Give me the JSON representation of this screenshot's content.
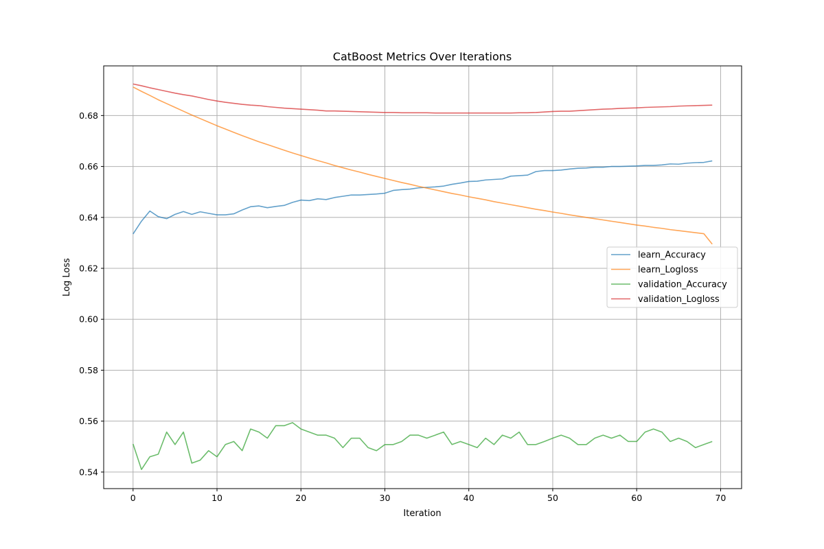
{
  "chart_data": {
    "type": "line",
    "title": "CatBoost Metrics Over Iterations",
    "xlabel": "Iteration",
    "ylabel": "Log Loss",
    "xlim": [
      -3.5,
      72.5
    ],
    "ylim": [
      0.5335,
      0.6995
    ],
    "xticks": [
      0,
      10,
      20,
      30,
      40,
      50,
      60,
      70
    ],
    "yticks": [
      0.54,
      0.56,
      0.58,
      0.6,
      0.62,
      0.64,
      0.66,
      0.68
    ],
    "ytick_labels": [
      "0.54",
      "0.56",
      "0.58",
      "0.60",
      "0.62",
      "0.64",
      "0.66",
      "0.68"
    ],
    "grid": true,
    "legend_position": "center-right",
    "series": [
      {
        "name": "learn_Accuracy",
        "color": "#1f77b4",
        "values": [
          0.6335,
          0.6385,
          0.6425,
          0.6403,
          0.6395,
          0.6412,
          0.6423,
          0.6412,
          0.6422,
          0.6416,
          0.641,
          0.641,
          0.6414,
          0.6429,
          0.6442,
          0.6445,
          0.6438,
          0.6443,
          0.6447,
          0.6459,
          0.6468,
          0.6466,
          0.6473,
          0.647,
          0.6478,
          0.6483,
          0.6488,
          0.6488,
          0.649,
          0.6492,
          0.6495,
          0.6506,
          0.6509,
          0.6511,
          0.6516,
          0.6518,
          0.652,
          0.6523,
          0.653,
          0.6535,
          0.6541,
          0.6542,
          0.6547,
          0.6549,
          0.6551,
          0.6562,
          0.6564,
          0.6566,
          0.658,
          0.6584,
          0.6584,
          0.6586,
          0.659,
          0.6593,
          0.6594,
          0.6597,
          0.6597,
          0.66,
          0.66,
          0.6601,
          0.6602,
          0.6604,
          0.6604,
          0.6606,
          0.661,
          0.6609,
          0.6613,
          0.6615,
          0.6616,
          0.6622
        ]
      },
      {
        "name": "learn_Logloss",
        "color": "#ff7f0e",
        "values": [
          0.6912,
          0.6895,
          0.6879,
          0.6862,
          0.6847,
          0.6832,
          0.6817,
          0.6802,
          0.6788,
          0.6774,
          0.676,
          0.6747,
          0.6734,
          0.6721,
          0.6709,
          0.6697,
          0.6686,
          0.6675,
          0.6664,
          0.6653,
          0.6643,
          0.6633,
          0.6623,
          0.6614,
          0.6604,
          0.6595,
          0.6586,
          0.6578,
          0.6569,
          0.6561,
          0.6553,
          0.6545,
          0.6537,
          0.653,
          0.6522,
          0.6515,
          0.6508,
          0.6501,
          0.6494,
          0.6488,
          0.6481,
          0.6475,
          0.6469,
          0.6462,
          0.6456,
          0.645,
          0.6444,
          0.6438,
          0.6432,
          0.6427,
          0.6421,
          0.6416,
          0.641,
          0.6405,
          0.64,
          0.6395,
          0.639,
          0.6385,
          0.638,
          0.6375,
          0.637,
          0.6366,
          0.6361,
          0.6357,
          0.6352,
          0.6348,
          0.6344,
          0.634,
          0.6336,
          0.6295
        ]
      },
      {
        "name": "validation_Accuracy",
        "color": "#2ca02c",
        "values": [
          0.551,
          0.541,
          0.546,
          0.547,
          0.5557,
          0.5508,
          0.5557,
          0.5435,
          0.5447,
          0.5484,
          0.546,
          0.5508,
          0.552,
          0.5484,
          0.5569,
          0.5557,
          0.5533,
          0.5582,
          0.5582,
          0.5594,
          0.5569,
          0.5557,
          0.5545,
          0.5545,
          0.5533,
          0.5496,
          0.5533,
          0.5533,
          0.5496,
          0.5484,
          0.5508,
          0.5508,
          0.552,
          0.5545,
          0.5545,
          0.5533,
          0.5545,
          0.5557,
          0.5508,
          0.552,
          0.5508,
          0.5496,
          0.5533,
          0.5508,
          0.5545,
          0.5533,
          0.5557,
          0.5508,
          0.5508,
          0.552,
          0.5533,
          0.5545,
          0.5533,
          0.5508,
          0.5508,
          0.5533,
          0.5545,
          0.5533,
          0.5545,
          0.552,
          0.552,
          0.5557,
          0.5569,
          0.5557,
          0.552,
          0.5533,
          0.552,
          0.5496,
          0.5508,
          0.552
        ]
      },
      {
        "name": "validation_Logloss",
        "color": "#d62728",
        "values": [
          0.6924,
          0.6917,
          0.6909,
          0.6902,
          0.6895,
          0.6888,
          0.6882,
          0.6877,
          0.687,
          0.6863,
          0.6857,
          0.6852,
          0.6848,
          0.6844,
          0.6841,
          0.6839,
          0.6835,
          0.6832,
          0.6829,
          0.6827,
          0.6825,
          0.6823,
          0.6821,
          0.6818,
          0.6818,
          0.6817,
          0.6816,
          0.6815,
          0.6814,
          0.6813,
          0.6812,
          0.6812,
          0.6811,
          0.6811,
          0.6811,
          0.6811,
          0.681,
          0.681,
          0.681,
          0.681,
          0.681,
          0.681,
          0.681,
          0.681,
          0.681,
          0.681,
          0.6811,
          0.6811,
          0.6812,
          0.6814,
          0.6816,
          0.6817,
          0.6817,
          0.6819,
          0.6821,
          0.6823,
          0.6825,
          0.6826,
          0.6828,
          0.6829,
          0.683,
          0.6832,
          0.6833,
          0.6834,
          0.6835,
          0.6837,
          0.6838,
          0.6839,
          0.684,
          0.6841
        ]
      }
    ]
  }
}
